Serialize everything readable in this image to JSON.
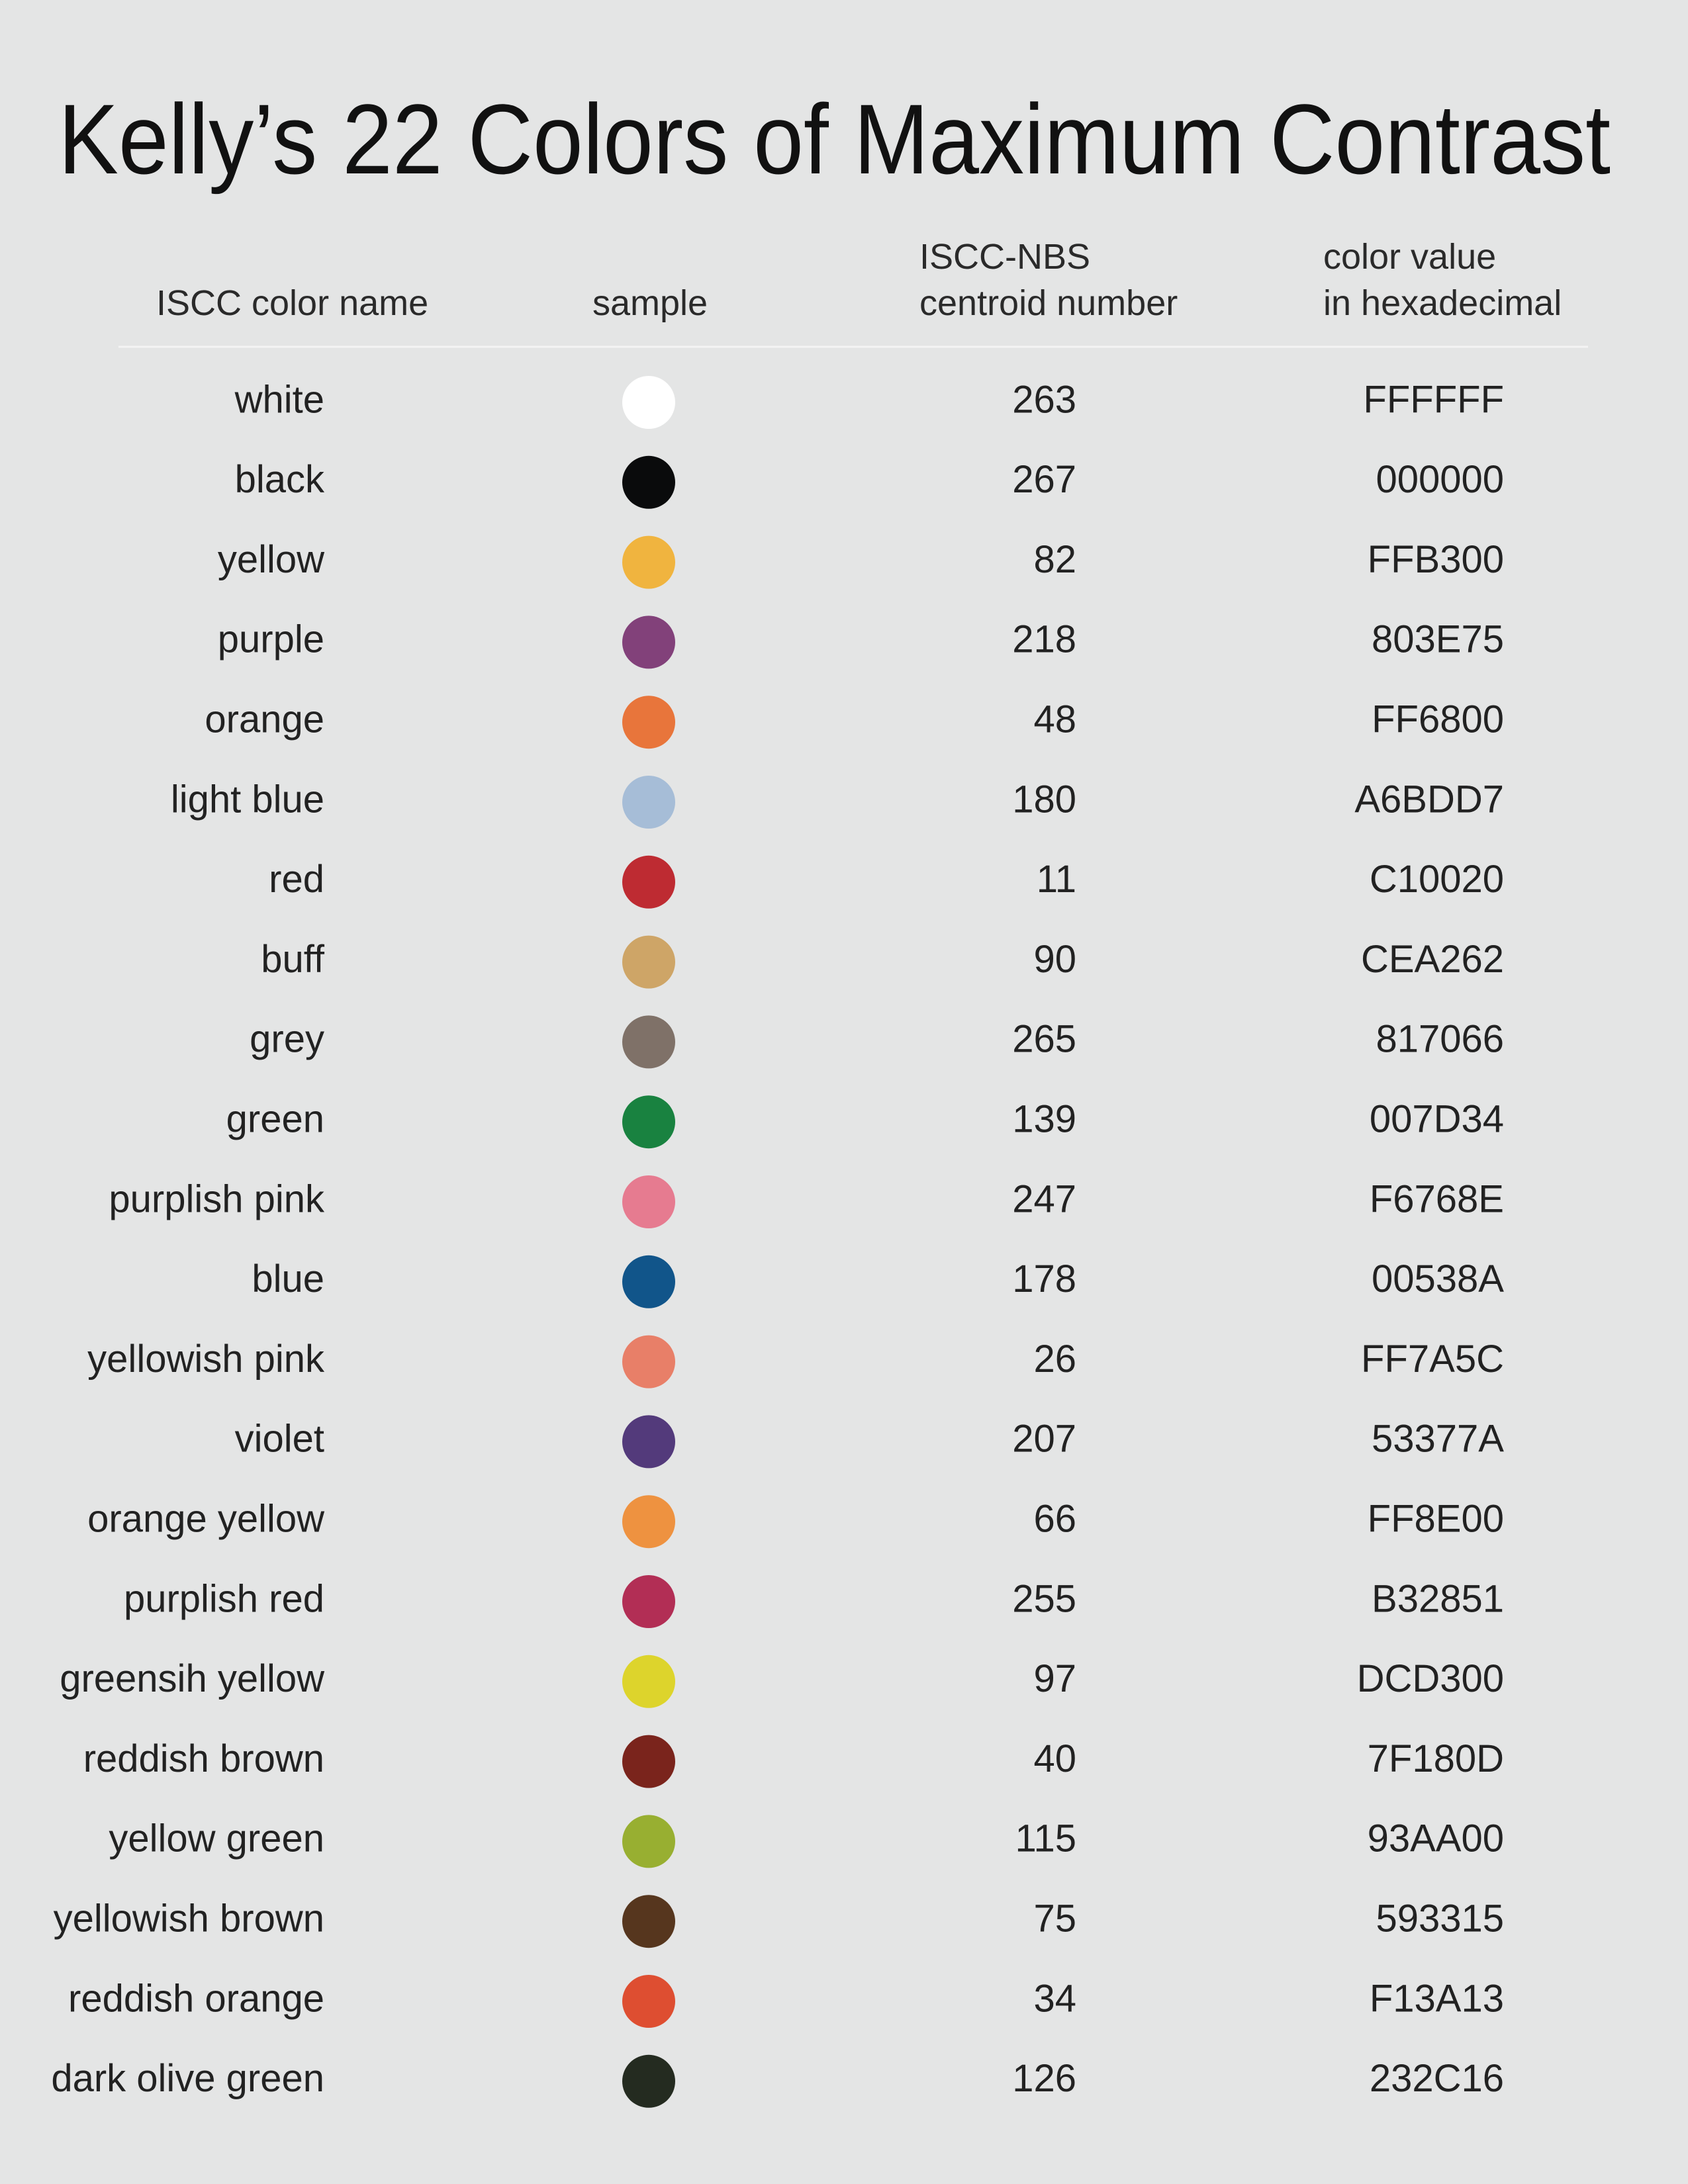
{
  "title": "Kelly’s 22 Colors of Maximum Contrast",
  "table": {
    "headers": [
      [
        "ISCC color name"
      ],
      [
        "sample"
      ],
      [
        "ISCC-NBS",
        "centroid number"
      ],
      [
        "color value",
        "in hexadecimal"
      ]
    ],
    "rows": [
      {
        "name": "white",
        "number": 263,
        "hex": "FFFFFF",
        "color": "#FFFFFF"
      },
      {
        "name": "black",
        "number": 267,
        "hex": "000000",
        "color": "#0A0B0C"
      },
      {
        "name": "yellow",
        "number": 82,
        "hex": "FFB300",
        "color": "#F0B43F"
      },
      {
        "name": "purple",
        "number": 218,
        "hex": "803E75",
        "color": "#82417A"
      },
      {
        "name": "orange",
        "number": 48,
        "hex": "FF6800",
        "color": "#E8753B"
      },
      {
        "name": "light blue",
        "number": 180,
        "hex": "A6BDD7",
        "color": "#A6BDD7"
      },
      {
        "name": "red",
        "number": 11,
        "hex": "C10020",
        "color": "#BE2B32"
      },
      {
        "name": "buff",
        "number": 90,
        "hex": "CEA262",
        "color": "#CEA567"
      },
      {
        "name": "grey",
        "number": 265,
        "hex": "817066",
        "color": "#7F7168"
      },
      {
        "name": "green",
        "number": 139,
        "hex": "007D34",
        "color": "#198240"
      },
      {
        "name": "purplish pink",
        "number": 247,
        "hex": "F6768E",
        "color": "#E67B90"
      },
      {
        "name": "blue",
        "number": 178,
        "hex": "00538A",
        "color": "#11558A"
      },
      {
        "name": "yellowish pink",
        "number": 26,
        "hex": "FF7A5C",
        "color": "#E87F68"
      },
      {
        "name": "violet",
        "number": 207,
        "hex": "53377A",
        "color": "#533A7B"
      },
      {
        "name": "orange yellow",
        "number": 66,
        "hex": "FF8E00",
        "color": "#EE9240"
      },
      {
        "name": "purplish red",
        "number": 255,
        "hex": "B32851",
        "color": "#B22E55"
      },
      {
        "name": "greensih yellow",
        "number": 97,
        "hex": "DCD300",
        "color": "#DDD42C"
      },
      {
        "name": "reddish brown",
        "number": 40,
        "hex": "7F180D",
        "color": "#7A241C"
      },
      {
        "name": "yellow green",
        "number": 115,
        "hex": "93AA00",
        "color": "#98AF31"
      },
      {
        "name": "yellowish brown",
        "number": 75,
        "hex": "593315",
        "color": "#56361E"
      },
      {
        "name": "reddish orange",
        "number": 34,
        "hex": "F13A13",
        "color": "#DE4E31"
      },
      {
        "name": "dark olive green",
        "number": 126,
        "hex": "232C16",
        "color": "#242B20"
      }
    ]
  }
}
